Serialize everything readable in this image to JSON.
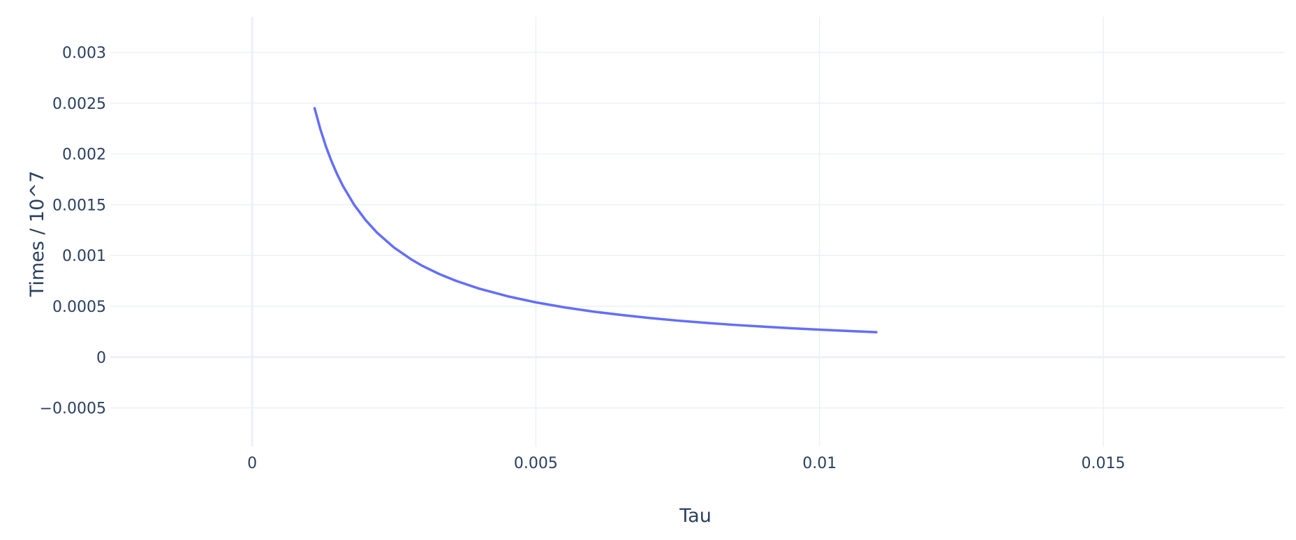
{
  "chart_data": {
    "type": "line",
    "xlabel": "Tau",
    "ylabel": "Times / 10^7",
    "xlim": [
      -0.0025,
      0.0182
    ],
    "ylim": [
      -0.00088,
      0.00335
    ],
    "x_ticks": [
      {
        "value": 0,
        "label": "0"
      },
      {
        "value": 0.005,
        "label": "0.005"
      },
      {
        "value": 0.01,
        "label": "0.01"
      },
      {
        "value": 0.015,
        "label": "0.015"
      }
    ],
    "y_ticks": [
      {
        "value": -0.0005,
        "label": "−0.0005"
      },
      {
        "value": 0,
        "label": "0"
      },
      {
        "value": 0.0005,
        "label": "0.0005"
      },
      {
        "value": 0.001,
        "label": "0.001"
      },
      {
        "value": 0.0015,
        "label": "0.0015"
      },
      {
        "value": 0.002,
        "label": "0.002"
      },
      {
        "value": 0.0025,
        "label": "0.0025"
      },
      {
        "value": 0.003,
        "label": "0.003"
      }
    ],
    "grid": true,
    "legend": false,
    "series": [
      {
        "color": "#636efa",
        "x": [
          0.0011,
          0.0012,
          0.0013,
          0.0014,
          0.0015,
          0.0016,
          0.0018,
          0.002,
          0.0022,
          0.0025,
          0.0028,
          0.003,
          0.0033,
          0.0036,
          0.004,
          0.0045,
          0.005,
          0.0055,
          0.006,
          0.0065,
          0.007,
          0.0075,
          0.008,
          0.0085,
          0.009,
          0.0095,
          0.01,
          0.0105,
          0.011
        ],
        "y": [
          0.00245,
          0.002246,
          0.002073,
          0.001925,
          0.001797,
          0.001684,
          0.001497,
          0.001348,
          0.001225,
          0.001078,
          0.000963,
          0.000898,
          0.000817,
          0.000749,
          0.000674,
          0.000599,
          0.000539,
          0.00049,
          0.000449,
          0.000415,
          0.000385,
          0.000359,
          0.000337,
          0.000317,
          0.0003,
          0.000284,
          0.00027,
          0.000257,
          0.000245
        ]
      }
    ]
  }
}
